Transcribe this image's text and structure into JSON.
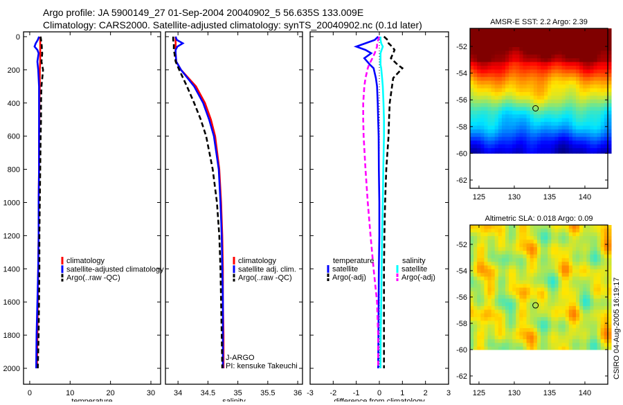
{
  "title": {
    "line1": "Argo profile: JA 5900149_27 01-Sep-2004 20040902_5 56.635S 133.009E",
    "line2": "Climatology: CARS2000. Satellite-adjusted climatology: synTS_20040902.nc (0.1d later)"
  },
  "footer": "CSIRO 04-Aug-2005 16:19:17",
  "chart_data": [
    {
      "id": "temperature",
      "type": "line",
      "xlabel": "temperature",
      "ylabel": "",
      "xlim": [
        -1.53,
        32.4
      ],
      "ylim": [
        2096,
        -29
      ],
      "xticks": [
        0,
        10,
        20,
        30
      ],
      "yticks": [
        0,
        200,
        400,
        600,
        800,
        1000,
        1200,
        1400,
        1600,
        1800,
        2000
      ],
      "show_yticklabels": true,
      "depth": [
        0,
        20,
        40,
        60,
        80,
        100,
        150,
        200,
        300,
        400,
        500,
        600,
        800,
        1000,
        1200,
        1400,
        1600,
        1800,
        2000
      ],
      "series": [
        {
          "name": "climatology",
          "color": "#ff0000",
          "dash": false,
          "x": [
            2.6,
            2.6,
            2.6,
            2.6,
            2.6,
            2.6,
            2.6,
            2.5,
            2.5,
            2.4,
            2.4,
            2.3,
            2.3,
            2.2,
            2.2,
            2.1,
            2.0,
            1.9,
            1.8
          ]
        },
        {
          "name": "satellite-adjusted climatology",
          "color": "#0000ff",
          "dash": false,
          "x": [
            2.3,
            2.0,
            1.5,
            1.2,
            1.9,
            2.2,
            1.9,
            2.1,
            2.3,
            2.3,
            2.3,
            2.3,
            2.3,
            2.2,
            2.2,
            2.1,
            1.9,
            1.7,
            1.6
          ]
        },
        {
          "name": "Argo(..raw -QC)",
          "color": "#000000",
          "dash": true,
          "x": [
            2.7,
            2.8,
            2.9,
            3.0,
            3.0,
            3.1,
            2.9,
            3.3,
            2.9,
            2.8,
            2.8,
            2.7,
            2.6,
            2.5,
            2.4,
            2.4,
            2.3,
            2.2,
            2.0
          ]
        }
      ],
      "legend": [
        "climatology",
        "satellite-adjusted climatology",
        "Argo(..raw -QC)"
      ]
    },
    {
      "id": "salinity",
      "type": "line",
      "xlabel": "salinity",
      "xlim": [
        33.79,
        36.08
      ],
      "ylim": [
        2096,
        -29
      ],
      "xticks": [
        34,
        34.5,
        35,
        35.5,
        36
      ],
      "yticks": [
        0,
        200,
        400,
        600,
        800,
        1000,
        1200,
        1400,
        1600,
        1800,
        2000
      ],
      "show_yticklabels": false,
      "depth": [
        0,
        20,
        40,
        60,
        80,
        100,
        150,
        200,
        300,
        400,
        500,
        600,
        800,
        1000,
        1200,
        1400,
        1600,
        1800,
        2000
      ],
      "series": [
        {
          "name": "climatology",
          "color": "#ff0000",
          "dash": false,
          "x": [
            33.96,
            33.96,
            33.96,
            33.96,
            33.96,
            33.96,
            33.97,
            34.05,
            34.3,
            34.45,
            34.55,
            34.62,
            34.69,
            34.72,
            34.74,
            34.75,
            34.75,
            34.76,
            34.76
          ]
        },
        {
          "name": "satellite adj. clim.",
          "color": "#0000ff",
          "dash": false,
          "x": [
            33.96,
            33.98,
            34.08,
            33.99,
            33.96,
            33.96,
            33.97,
            34.05,
            34.27,
            34.42,
            34.52,
            34.6,
            34.68,
            34.71,
            34.73,
            34.74,
            34.75,
            34.75,
            34.75
          ]
        },
        {
          "name": "Argo(..raw -QC)",
          "color": "#000000",
          "dash": true,
          "x": [
            33.92,
            33.92,
            33.93,
            33.93,
            33.93,
            33.94,
            33.96,
            34.02,
            34.15,
            34.27,
            34.38,
            34.47,
            34.58,
            34.65,
            34.69,
            34.71,
            34.72,
            34.73,
            34.74
          ]
        }
      ],
      "legend": [
        "climatology",
        "satellite adj. clim.",
        "Argo(..raw -QC)"
      ],
      "annotations": [
        "J-ARGO",
        "PI: kensuke Takeuchi"
      ]
    },
    {
      "id": "difference",
      "type": "line",
      "xlabel": "difference from climatology",
      "xlim": [
        -3,
        3
      ],
      "ylim": [
        2096,
        -29
      ],
      "xticks": [
        -3,
        -2,
        -1,
        0,
        1,
        2,
        3
      ],
      "yticks": [
        0,
        200,
        400,
        600,
        800,
        1000,
        1200,
        1400,
        1600,
        1800,
        2000
      ],
      "show_yticklabels": false,
      "depth": [
        0,
        20,
        40,
        60,
        80,
        100,
        130,
        170,
        190,
        250,
        300,
        400,
        500,
        600,
        800,
        1000,
        1200,
        1400,
        1600,
        1800,
        2000
      ],
      "series": [
        {
          "name": "temperature satellite",
          "color": "#0000ff",
          "dash": false,
          "x": [
            -0.05,
            -0.2,
            -0.6,
            -1.0,
            -0.6,
            -0.35,
            -0.65,
            -0.4,
            -0.25,
            -0.15,
            -0.1,
            -0.07,
            -0.05,
            -0.03,
            -0.02,
            0,
            0,
            -0.02,
            -0.03,
            -0.04,
            -0.05
          ]
        },
        {
          "name": "temperature Argo(-adj)",
          "color": "#000000",
          "dash": true,
          "x": [
            0.2,
            0.36,
            0.4,
            0.55,
            0.66,
            0.6,
            0.5,
            0.8,
            1.0,
            0.6,
            0.55,
            0.45,
            0.42,
            0.4,
            0.3,
            0.25,
            0.22,
            0.2,
            0.2,
            0.2,
            0.2
          ]
        },
        {
          "name": "salinity satellite",
          "color": "#00ffff",
          "dash": false,
          "x": [
            0.05,
            0.05,
            0.08,
            0.15,
            0.1,
            0.05,
            0.05,
            0.05,
            0.08,
            0.12,
            0.15,
            0.18,
            0.2,
            0.2,
            0.17,
            0.15,
            0.12,
            0.1,
            0.08,
            0.06,
            0.05
          ]
        },
        {
          "name": "salinity Argo(-adj)",
          "color": "#ff00ff",
          "dash": true,
          "x": [
            0.0,
            -0.05,
            -0.1,
            -0.1,
            -0.15,
            -0.2,
            -0.3,
            -0.45,
            -0.5,
            -0.6,
            -0.65,
            -0.7,
            -0.7,
            -0.68,
            -0.6,
            -0.5,
            -0.38,
            -0.25,
            -0.1,
            -0.05,
            -0.05
          ]
        }
      ],
      "legend_temperature": {
        "heading": "temperature",
        "items": [
          "satellite",
          "Argo(-adj)"
        ]
      },
      "legend_salinity": {
        "heading": "salinity",
        "items": [
          "satellite",
          "Argo(-adj)"
        ]
      }
    },
    {
      "id": "sst-map",
      "type": "heatmap",
      "title": "AMSR-E SST: 2.2 Argo: 2.39",
      "xlim": [
        123.73,
        143.24
      ],
      "ylim": [
        -62.62,
        -50.65
      ],
      "data_lat_min": -60,
      "xticks": [
        125,
        130,
        135,
        140
      ],
      "yticks": [
        -52,
        -54,
        -56,
        -58,
        -60,
        -62
      ],
      "marker": {
        "lon": 133.009,
        "lat": -56.635
      }
    },
    {
      "id": "sla-map",
      "type": "heatmap",
      "title": "Altimetric SLA: 0.018 Argo: 0.09",
      "xlim": [
        123.73,
        143.24
      ],
      "ylim": [
        -62.63,
        -50.53
      ],
      "data_lat_min": -60,
      "xticks": [
        125,
        130,
        135,
        140
      ],
      "yticks": [
        -52,
        -54,
        -56,
        -58,
        -60,
        -62
      ],
      "marker": {
        "lon": 133.009,
        "lat": -56.635
      }
    }
  ]
}
